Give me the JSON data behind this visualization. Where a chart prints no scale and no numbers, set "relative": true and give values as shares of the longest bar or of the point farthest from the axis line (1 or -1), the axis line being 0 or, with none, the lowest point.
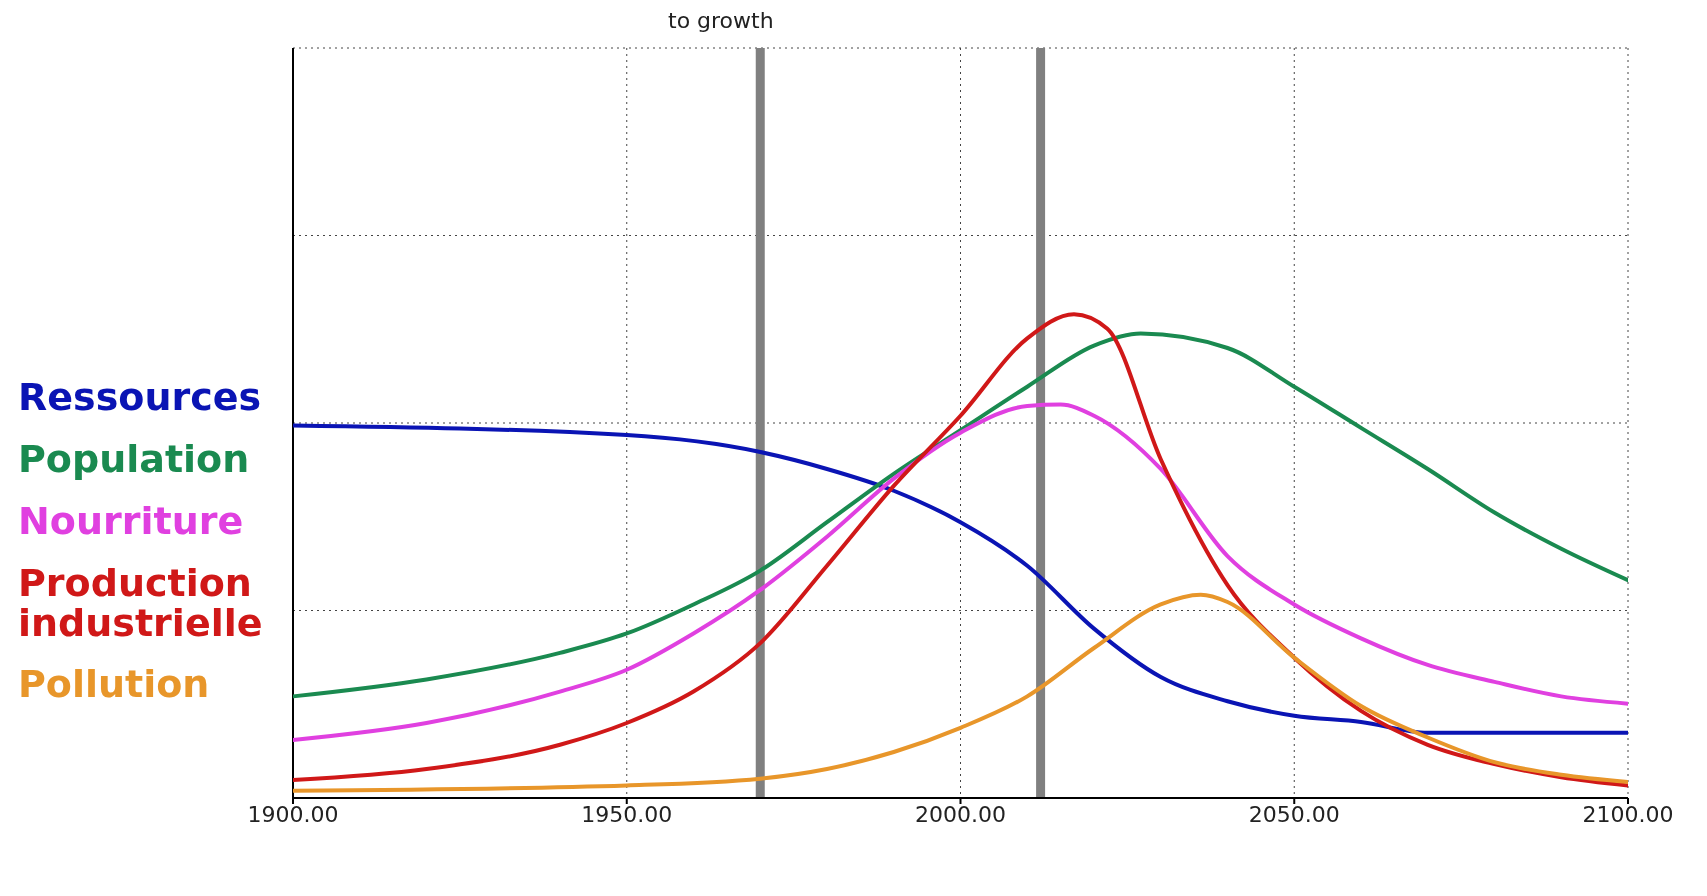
{
  "chart_data": {
    "type": "line",
    "relative": true,
    "annotations": [
      "to growth"
    ],
    "xlim": [
      1900,
      2100
    ],
    "xticks": [
      {
        "value": 1900,
        "label": "1900.00"
      },
      {
        "value": 1950,
        "label": "1950.00"
      },
      {
        "value": 2000,
        "label": "2000.00"
      },
      {
        "value": 2050,
        "label": "2050.00"
      },
      {
        "value": 2100,
        "label": "2100.00"
      }
    ],
    "grid": true,
    "legend": "left",
    "line_style": "solid",
    "marker": "none",
    "ref_lines": [
      {
        "axis": "x",
        "value": 1970,
        "color": "#808080"
      },
      {
        "axis": "x",
        "value": 2012,
        "color": "#808080"
      }
    ],
    "series": [
      {
        "name": "Ressources",
        "color": "#0a14b4",
        "x": [
          1900,
          1950,
          1970,
          1980,
          1990,
          2000,
          2010,
          2020,
          2030,
          2040,
          2050,
          2060,
          2070,
          2080,
          2090,
          2100
        ],
        "values": [
          0.77,
          0.75,
          0.715,
          0.68,
          0.635,
          0.57,
          0.48,
          0.35,
          0.25,
          0.2,
          0.17,
          0.157,
          0.135,
          0.135,
          0.135,
          0.135
        ]
      },
      {
        "name": "Population",
        "color": "#1a8a50",
        "x": [
          1900,
          1920,
          1940,
          1950,
          1960,
          1970,
          1980,
          1990,
          2000,
          2010,
          2020,
          2027,
          2040,
          2050,
          2060,
          2070,
          2080,
          2090,
          2100
        ],
        "values": [
          0.21,
          0.245,
          0.3,
          0.34,
          0.4,
          0.47,
          0.57,
          0.67,
          0.76,
          0.85,
          0.935,
          0.96,
          0.93,
          0.85,
          0.765,
          0.68,
          0.59,
          0.515,
          0.45
        ]
      },
      {
        "name": "Nourriture",
        "color": "#e040e0",
        "x": [
          1900,
          1920,
          1940,
          1950,
          1960,
          1970,
          1980,
          1990,
          2000,
          2010,
          2015,
          2020,
          2030,
          2040,
          2050,
          2060,
          2070,
          2080,
          2090,
          2100
        ],
        "values": [
          0.12,
          0.155,
          0.22,
          0.265,
          0.34,
          0.43,
          0.54,
          0.66,
          0.755,
          0.81,
          0.813,
          0.79,
          0.68,
          0.5,
          0.4,
          0.33,
          0.275,
          0.24,
          0.21,
          0.195
        ]
      },
      {
        "name": "Production industrielle",
        "color": "#d01818",
        "x": [
          1900,
          1920,
          1940,
          1950,
          1960,
          1970,
          1980,
          1990,
          2000,
          2010,
          2017,
          2022,
          2030,
          2040,
          2050,
          2060,
          2070,
          2080,
          2090,
          2100
        ],
        "values": [
          0.037,
          0.06,
          0.11,
          0.155,
          0.22,
          0.32,
          0.48,
          0.645,
          0.79,
          0.95,
          1,
          0.97,
          0.7,
          0.44,
          0.29,
          0.18,
          0.11,
          0.07,
          0.043,
          0.026
        ]
      },
      {
        "name": "Pollution",
        "color": "#e8962a",
        "x": [
          1900,
          1950,
          1970,
          1980,
          1990,
          2000,
          2010,
          2020,
          2030,
          2036,
          2040,
          2050,
          2060,
          2070,
          2080,
          2090,
          2100
        ],
        "values": [
          0.015,
          0.026,
          0.04,
          0.06,
          0.095,
          0.145,
          0.21,
          0.31,
          0.4,
          0.42,
          0.405,
          0.29,
          0.19,
          0.125,
          0.074,
          0.048,
          0.033
        ]
      }
    ]
  }
}
